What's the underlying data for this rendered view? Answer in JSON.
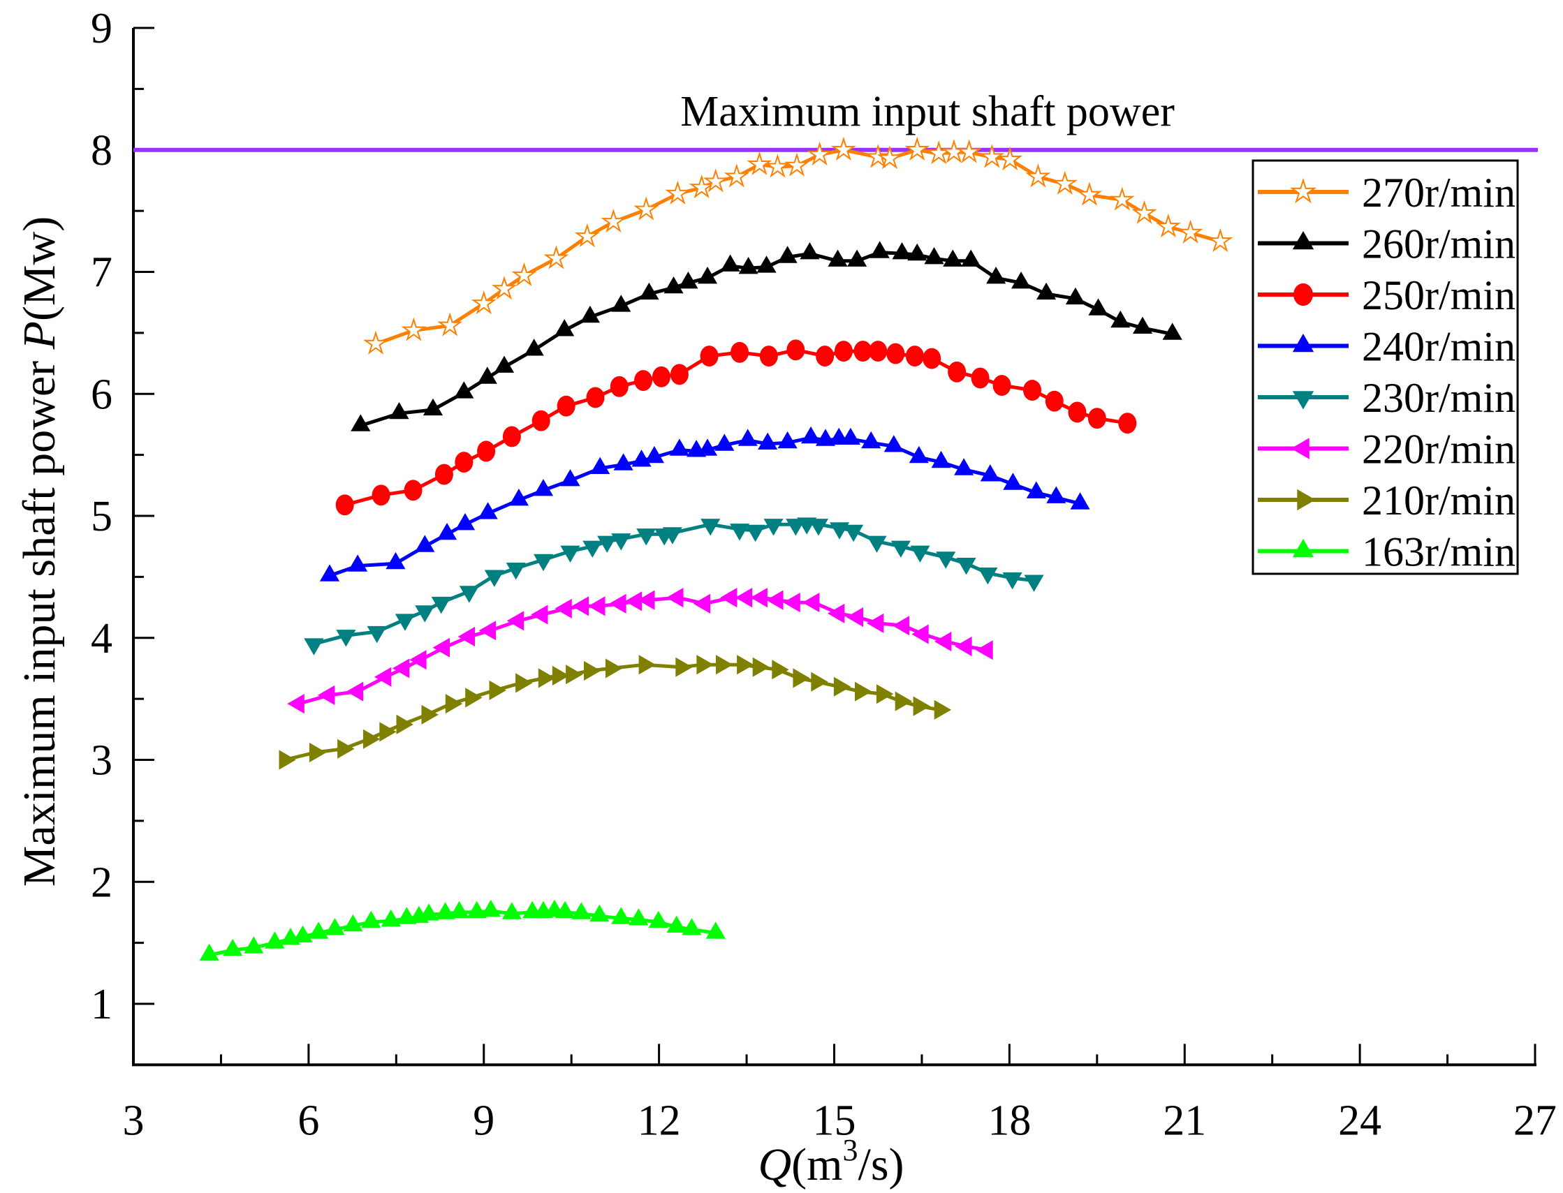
{
  "chart_data": {
    "type": "line",
    "xlabel": {
      "italic": "Q",
      "rest": "(m",
      "sup": "3",
      "tail": "/s)"
    },
    "ylabel": {
      "text": "Maximum input shaft power ",
      "italic": "P",
      "tail": "(Mw)"
    },
    "xlim": [
      3,
      27
    ],
    "ylim": [
      0.5,
      9
    ],
    "xticks": [
      "3",
      "6",
      "9",
      "12",
      "15",
      "18",
      "21",
      "24",
      "27"
    ],
    "yticks": [
      "1",
      "2",
      "3",
      "4",
      "5",
      "6",
      "7",
      "8",
      "9"
    ],
    "grid": false,
    "legend_position": "top-right",
    "reference_line": {
      "y": 8,
      "label": "Maximum input shaft power",
      "color": "#9B30FF"
    },
    "series": [
      {
        "name": "270r/min",
        "color": "#FF8000",
        "marker": "star-open",
        "x": [
          7.15,
          7.8,
          8.42,
          9.0,
          9.35,
          9.69,
          10.24,
          10.77,
          11.22,
          11.78,
          12.32,
          12.73,
          12.97,
          13.33,
          13.72,
          14.03,
          14.36,
          14.75,
          15.16,
          15.75,
          15.95,
          16.42,
          16.79,
          17.05,
          17.31,
          17.7,
          18.01,
          18.49,
          18.95,
          19.37,
          19.93,
          20.31,
          20.72,
          21.1,
          21.61
        ],
        "y": [
          6.41,
          6.52,
          6.56,
          6.74,
          6.86,
          6.97,
          7.11,
          7.29,
          7.41,
          7.51,
          7.64,
          7.69,
          7.74,
          7.78,
          7.88,
          7.86,
          7.87,
          7.96,
          8.0,
          7.94,
          7.93,
          8.0,
          7.97,
          7.98,
          7.98,
          7.94,
          7.92,
          7.78,
          7.72,
          7.63,
          7.59,
          7.48,
          7.37,
          7.32,
          7.25
        ]
      },
      {
        "name": "260r/min",
        "color": "#000000",
        "marker": "triangle-up",
        "x": [
          6.89,
          7.55,
          8.13,
          8.66,
          9.06,
          9.35,
          9.86,
          10.38,
          10.82,
          11.35,
          11.83,
          12.25,
          12.5,
          12.83,
          13.22,
          13.53,
          13.84,
          14.2,
          14.58,
          15.06,
          15.39,
          15.78,
          16.16,
          16.42,
          16.71,
          17.03,
          17.34,
          17.77,
          18.2,
          18.63,
          19.13,
          19.52,
          19.9,
          20.28,
          20.79
        ],
        "y": [
          5.74,
          5.84,
          5.87,
          6.01,
          6.13,
          6.22,
          6.36,
          6.52,
          6.63,
          6.72,
          6.82,
          6.87,
          6.91,
          6.95,
          7.05,
          7.03,
          7.04,
          7.12,
          7.15,
          7.09,
          7.09,
          7.16,
          7.15,
          7.14,
          7.11,
          7.09,
          7.09,
          6.95,
          6.91,
          6.82,
          6.78,
          6.69,
          6.59,
          6.54,
          6.49
        ]
      },
      {
        "name": "250r/min",
        "color": "#FF0000",
        "marker": "circle",
        "x": [
          6.62,
          7.24,
          7.79,
          8.32,
          8.66,
          9.04,
          9.48,
          9.98,
          10.41,
          10.91,
          11.32,
          11.73,
          12.04,
          12.35,
          12.86,
          13.38,
          13.88,
          14.34,
          14.84,
          15.16,
          15.49,
          15.75,
          16.05,
          16.38,
          16.67,
          17.1,
          17.5,
          17.87,
          18.39,
          18.77,
          19.16,
          19.5,
          20.02
        ],
        "y": [
          5.09,
          5.17,
          5.21,
          5.34,
          5.44,
          5.53,
          5.65,
          5.78,
          5.9,
          5.97,
          6.06,
          6.11,
          6.14,
          6.16,
          6.31,
          6.34,
          6.31,
          6.36,
          6.31,
          6.35,
          6.35,
          6.35,
          6.33,
          6.31,
          6.29,
          6.18,
          6.13,
          6.07,
          6.03,
          5.94,
          5.85,
          5.8,
          5.76
        ]
      },
      {
        "name": "240r/min",
        "color": "#0000FF",
        "marker": "triangle-up",
        "x": [
          6.36,
          6.84,
          7.49,
          7.99,
          8.37,
          8.68,
          9.07,
          9.6,
          10.02,
          10.48,
          10.99,
          11.39,
          11.7,
          11.92,
          12.35,
          12.64,
          12.83,
          13.12,
          13.52,
          13.86,
          14.2,
          14.6,
          14.85,
          15.08,
          15.28,
          15.63,
          16.02,
          16.45,
          16.83,
          17.22,
          17.67,
          18.06,
          18.46,
          18.8,
          19.21
        ],
        "y": [
          4.51,
          4.59,
          4.61,
          4.75,
          4.85,
          4.93,
          5.02,
          5.13,
          5.21,
          5.29,
          5.39,
          5.42,
          5.45,
          5.48,
          5.54,
          5.53,
          5.54,
          5.58,
          5.62,
          5.59,
          5.6,
          5.64,
          5.62,
          5.63,
          5.63,
          5.6,
          5.57,
          5.48,
          5.44,
          5.38,
          5.33,
          5.26,
          5.19,
          5.15,
          5.1
        ]
      },
      {
        "name": "230r/min",
        "color": "#008080",
        "marker": "triangle-down",
        "x": [
          6.09,
          6.64,
          7.17,
          7.65,
          7.99,
          8.27,
          8.75,
          9.18,
          9.55,
          10.02,
          10.48,
          10.86,
          11.11,
          11.35,
          11.78,
          12.09,
          12.23,
          12.88,
          13.38,
          13.65,
          13.96,
          14.34,
          14.53,
          14.73,
          15.09,
          15.33,
          15.73,
          16.14,
          16.47,
          16.91,
          17.26,
          17.63,
          18.05,
          18.42
        ],
        "y": [
          3.95,
          4.02,
          4.05,
          4.15,
          4.22,
          4.29,
          4.38,
          4.51,
          4.57,
          4.64,
          4.71,
          4.75,
          4.79,
          4.81,
          4.85,
          4.85,
          4.86,
          4.93,
          4.89,
          4.88,
          4.93,
          4.93,
          4.94,
          4.93,
          4.9,
          4.88,
          4.79,
          4.75,
          4.71,
          4.66,
          4.61,
          4.53,
          4.49,
          4.47
        ]
      },
      {
        "name": "220r/min",
        "color": "#FF00FF",
        "marker": "triangle-left",
        "x": [
          5.83,
          6.35,
          6.84,
          7.32,
          7.63,
          7.92,
          8.32,
          8.75,
          9.11,
          9.59,
          10.0,
          10.41,
          10.7,
          10.98,
          11.34,
          11.61,
          11.83,
          12.32,
          12.78,
          13.24,
          13.5,
          13.76,
          14.03,
          14.32,
          14.65,
          15.08,
          15.4,
          15.75,
          16.19,
          16.52,
          16.91,
          17.26,
          17.62
        ],
        "y": [
          3.46,
          3.53,
          3.56,
          3.68,
          3.75,
          3.82,
          3.92,
          4.01,
          4.06,
          4.14,
          4.19,
          4.24,
          4.26,
          4.26,
          4.28,
          4.3,
          4.31,
          4.33,
          4.28,
          4.33,
          4.33,
          4.33,
          4.31,
          4.29,
          4.29,
          4.2,
          4.17,
          4.12,
          4.1,
          4.03,
          3.97,
          3.93,
          3.9
        ]
      },
      {
        "name": "210r/min",
        "color": "#808000",
        "marker": "triangle-right",
        "x": [
          5.59,
          6.11,
          6.59,
          7.03,
          7.31,
          7.6,
          8.03,
          8.44,
          8.78,
          9.19,
          9.64,
          10.03,
          10.27,
          10.5,
          10.81,
          11.18,
          11.75,
          12.38,
          12.74,
          13.07,
          13.43,
          13.7,
          14.03,
          14.39,
          14.7,
          15.09,
          15.45,
          15.82,
          16.14,
          16.45,
          16.81
        ],
        "y": [
          3.0,
          3.06,
          3.09,
          3.17,
          3.23,
          3.29,
          3.37,
          3.46,
          3.51,
          3.57,
          3.63,
          3.67,
          3.69,
          3.7,
          3.73,
          3.75,
          3.78,
          3.76,
          3.78,
          3.78,
          3.78,
          3.76,
          3.74,
          3.67,
          3.64,
          3.6,
          3.56,
          3.54,
          3.48,
          3.44,
          3.41
        ]
      },
      {
        "name": "163r/min",
        "color": "#00FF00",
        "marker": "triangle-up",
        "x": [
          4.3,
          4.7,
          5.06,
          5.42,
          5.69,
          5.9,
          6.17,
          6.45,
          6.76,
          7.07,
          7.41,
          7.68,
          7.89,
          8.06,
          8.34,
          8.58,
          8.88,
          9.12,
          9.48,
          9.83,
          10.02,
          10.21,
          10.39,
          10.67,
          10.98,
          11.35,
          11.65,
          11.99,
          12.3,
          12.56,
          12.97
        ],
        "y": [
          1.4,
          1.44,
          1.46,
          1.5,
          1.53,
          1.55,
          1.58,
          1.61,
          1.64,
          1.67,
          1.68,
          1.7,
          1.71,
          1.73,
          1.74,
          1.75,
          1.75,
          1.76,
          1.74,
          1.75,
          1.75,
          1.76,
          1.75,
          1.74,
          1.72,
          1.7,
          1.69,
          1.67,
          1.63,
          1.61,
          1.58
        ]
      }
    ]
  }
}
